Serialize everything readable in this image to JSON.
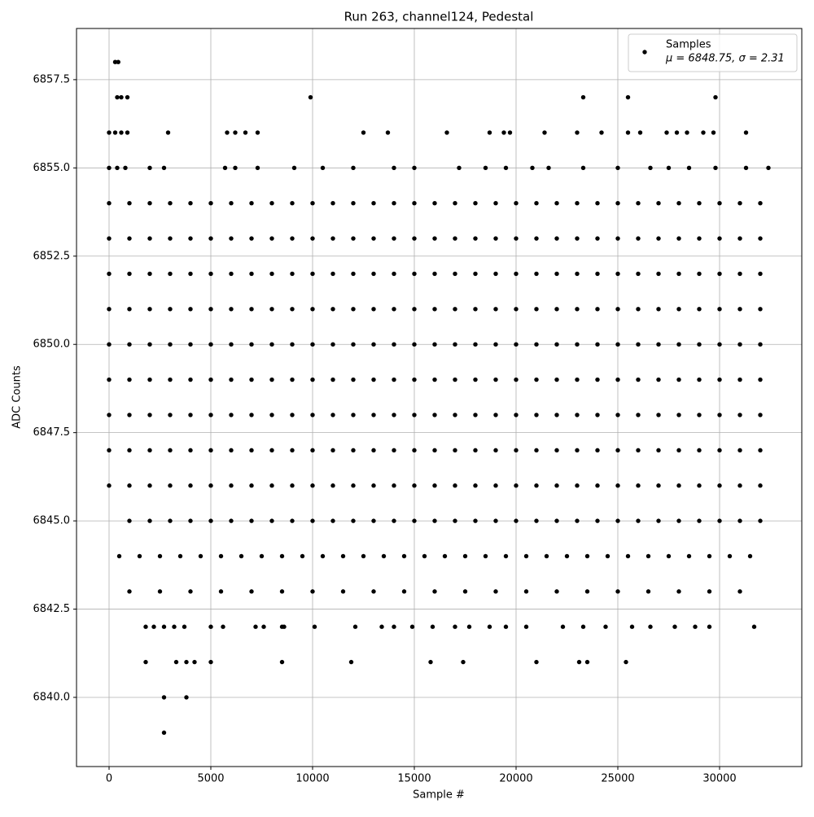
{
  "chart_data": {
    "type": "scatter",
    "title": "Run 263, channel124, Pedestal",
    "x_label": "Sample #",
    "y_label": "ADC Counts",
    "xlim": [
      -1600,
      34040
    ],
    "ylim": [
      6838.04,
      6858.95
    ],
    "xticks": [
      0,
      5000,
      10000,
      15000,
      20000,
      25000,
      30000
    ],
    "yticks": [
      {
        "value": 6840,
        "label": "6840.0"
      },
      6842.5,
      {
        "value": 6845,
        "label": "6845.0"
      },
      6847.5,
      {
        "value": 6850,
        "label": "6850.0"
      },
      6852.5,
      {
        "value": 6855,
        "label": "6855.0"
      },
      6857.5
    ],
    "grid": true,
    "legend": "upper right",
    "stats_label": "μ = 6848.75, σ = 2.31",
    "series": [
      {
        "name": "Samples",
        "color": "#000000",
        "x": [
          0,
          1000,
          2000,
          3000,
          4000,
          5000,
          6000,
          7000,
          8000,
          9000,
          10000,
          11000,
          12000,
          13000,
          14000,
          15000,
          16000,
          17000,
          18000,
          19000,
          20000,
          21000,
          22000,
          23000,
          24000,
          25000,
          26000,
          27000,
          28000,
          29000,
          30000,
          31000,
          32000,
          0,
          1000,
          2000,
          3000,
          4000,
          5000,
          6000,
          7000,
          8000,
          9000,
          10000,
          11000,
          12000,
          13000,
          14000,
          15000,
          16000,
          17000,
          18000,
          19000,
          20000,
          21000,
          22000,
          23000,
          24000,
          25000,
          26000,
          27000,
          28000,
          29000,
          30000,
          31000,
          32000,
          0,
          1000,
          2000,
          3000,
          4000,
          5000,
          6000,
          7000,
          8000,
          9000,
          10000,
          11000,
          12000,
          13000,
          14000,
          15000,
          16000,
          17000,
          18000,
          19000,
          20000,
          21000,
          22000,
          23000,
          24000,
          25000,
          26000,
          27000,
          28000,
          29000,
          30000,
          31000,
          32000,
          0,
          1000,
          2000,
          3000,
          4000,
          5000,
          6000,
          7000,
          8000,
          9000,
          10000,
          11000,
          12000,
          13000,
          14000,
          15000,
          16000,
          17000,
          18000,
          19000,
          20000,
          21000,
          22000,
          23000,
          24000,
          25000,
          26000,
          27000,
          28000,
          29000,
          30000,
          31000,
          32000,
          0,
          1000,
          2000,
          3000,
          4000,
          5000,
          6000,
          7000,
          8000,
          9000,
          10000,
          11000,
          12000,
          13000,
          14000,
          15000,
          16000,
          17000,
          18000,
          19000,
          20000,
          21000,
          22000,
          23000,
          24000,
          25000,
          26000,
          27000,
          28000,
          29000,
          30000,
          31000,
          32000,
          0,
          1000,
          2000,
          3000,
          4000,
          5000,
          6000,
          7000,
          8000,
          9000,
          10000,
          11000,
          12000,
          13000,
          14000,
          15000,
          16000,
          17000,
          18000,
          19000,
          20000,
          21000,
          22000,
          23000,
          24000,
          25000,
          26000,
          27000,
          28000,
          29000,
          30000,
          31000,
          32000,
          0,
          1000,
          2000,
          3000,
          4000,
          5000,
          6000,
          7000,
          8000,
          9000,
          10000,
          11000,
          12000,
          13000,
          14000,
          15000,
          16000,
          17000,
          18000,
          19000,
          20000,
          21000,
          22000,
          23000,
          24000,
          25000,
          26000,
          27000,
          28000,
          29000,
          30000,
          31000,
          32000,
          0,
          1000,
          2000,
          3000,
          4000,
          5000,
          6000,
          7000,
          8000,
          9000,
          10000,
          11000,
          12000,
          13000,
          14000,
          15000,
          16000,
          17000,
          18000,
          19000,
          20000,
          21000,
          22000,
          23000,
          24000,
          25000,
          26000,
          27000,
          28000,
          29000,
          30000,
          31000,
          32000,
          0,
          1000,
          2000,
          3000,
          4000,
          5000,
          6000,
          7000,
          8000,
          9000,
          10000,
          11000,
          12000,
          13000,
          14000,
          15000,
          16000,
          17000,
          18000,
          19000,
          20000,
          21000,
          22000,
          23000,
          24000,
          25000,
          26000,
          27000,
          28000,
          29000,
          30000,
          31000,
          32000,
          1000,
          2000,
          3000,
          4000,
          5000,
          6000,
          7000,
          8000,
          9000,
          10000,
          11000,
          12000,
          13000,
          14000,
          15000,
          16000,
          17000,
          18000,
          19000,
          20000,
          21000,
          22000,
          23000,
          24000,
          25000,
          26000,
          27000,
          28000,
          29000,
          30000,
          31000,
          32000,
          500,
          1500,
          2500,
          3500,
          4500,
          5500,
          6500,
          7500,
          8500,
          9500,
          10500,
          11500,
          12500,
          13500,
          14500,
          15500,
          16500,
          17500,
          18500,
          19500,
          20500,
          21500,
          22500,
          23500,
          24500,
          25500,
          26500,
          27500,
          28500,
          29500,
          30500,
          31500,
          1000,
          2500,
          4000,
          5500,
          7000,
          8500,
          10000,
          11500,
          13000,
          14500,
          16000,
          17500,
          19000,
          20500,
          22000,
          23500,
          25000,
          26500,
          28000,
          29500,
          31000,
          0,
          400,
          800,
          2000,
          2700,
          5700,
          6200,
          7300,
          9100,
          10500,
          12000,
          14000,
          15000,
          17200,
          18500,
          19500,
          20800,
          21600,
          23300,
          25000,
          26600,
          27500,
          28500,
          29800,
          31300,
          32400,
          0,
          300,
          600,
          900,
          2900,
          5800,
          6200,
          6700,
          7300,
          12500,
          13700,
          16600,
          18700,
          19400,
          19700,
          21400,
          23000,
          24200,
          25500,
          26100,
          27400,
          27900,
          28400,
          29200,
          29700,
          31300,
          400,
          600,
          900,
          9900,
          23300,
          25500,
          29800,
          300,
          450,
          1800,
          2200,
          2700,
          3200,
          3700,
          5000,
          5600,
          7200,
          7600,
          8500,
          8600,
          10100,
          12100,
          13400,
          14000,
          14900,
          15900,
          17000,
          17700,
          18700,
          19500,
          20500,
          22300,
          23300,
          24400,
          25700,
          26600,
          27800,
          28800,
          29500,
          31700,
          1800,
          3300,
          3800,
          4200,
          5000,
          8500,
          11900,
          15800,
          17400,
          21000,
          23100,
          23500,
          25400,
          2700,
          3800,
          2700
        ],
        "values": [
          6854,
          6854,
          6854,
          6854,
          6854,
          6854,
          6854,
          6854,
          6854,
          6854,
          6854,
          6854,
          6854,
          6854,
          6854,
          6854,
          6854,
          6854,
          6854,
          6854,
          6854,
          6854,
          6854,
          6854,
          6854,
          6854,
          6854,
          6854,
          6854,
          6854,
          6854,
          6854,
          6854,
          6853,
          6853,
          6853,
          6853,
          6853,
          6853,
          6853,
          6853,
          6853,
          6853,
          6853,
          6853,
          6853,
          6853,
          6853,
          6853,
          6853,
          6853,
          6853,
          6853,
          6853,
          6853,
          6853,
          6853,
          6853,
          6853,
          6853,
          6853,
          6853,
          6853,
          6853,
          6853,
          6853,
          6852,
          6852,
          6852,
          6852,
          6852,
          6852,
          6852,
          6852,
          6852,
          6852,
          6852,
          6852,
          6852,
          6852,
          6852,
          6852,
          6852,
          6852,
          6852,
          6852,
          6852,
          6852,
          6852,
          6852,
          6852,
          6852,
          6852,
          6852,
          6852,
          6852,
          6852,
          6852,
          6852,
          6851,
          6851,
          6851,
          6851,
          6851,
          6851,
          6851,
          6851,
          6851,
          6851,
          6851,
          6851,
          6851,
          6851,
          6851,
          6851,
          6851,
          6851,
          6851,
          6851,
          6851,
          6851,
          6851,
          6851,
          6851,
          6851,
          6851,
          6851,
          6851,
          6851,
          6851,
          6851,
          6851,
          6850,
          6850,
          6850,
          6850,
          6850,
          6850,
          6850,
          6850,
          6850,
          6850,
          6850,
          6850,
          6850,
          6850,
          6850,
          6850,
          6850,
          6850,
          6850,
          6850,
          6850,
          6850,
          6850,
          6850,
          6850,
          6850,
          6850,
          6850,
          6850,
          6850,
          6850,
          6850,
          6850,
          6849,
          6849,
          6849,
          6849,
          6849,
          6849,
          6849,
          6849,
          6849,
          6849,
          6849,
          6849,
          6849,
          6849,
          6849,
          6849,
          6849,
          6849,
          6849,
          6849,
          6849,
          6849,
          6849,
          6849,
          6849,
          6849,
          6849,
          6849,
          6849,
          6849,
          6849,
          6849,
          6849,
          6848,
          6848,
          6848,
          6848,
          6848,
          6848,
          6848,
          6848,
          6848,
          6848,
          6848,
          6848,
          6848,
          6848,
          6848,
          6848,
          6848,
          6848,
          6848,
          6848,
          6848,
          6848,
          6848,
          6848,
          6848,
          6848,
          6848,
          6848,
          6848,
          6848,
          6848,
          6848,
          6848,
          6847,
          6847,
          6847,
          6847,
          6847,
          6847,
          6847,
          6847,
          6847,
          6847,
          6847,
          6847,
          6847,
          6847,
          6847,
          6847,
          6847,
          6847,
          6847,
          6847,
          6847,
          6847,
          6847,
          6847,
          6847,
          6847,
          6847,
          6847,
          6847,
          6847,
          6847,
          6847,
          6847,
          6846,
          6846,
          6846,
          6846,
          6846,
          6846,
          6846,
          6846,
          6846,
          6846,
          6846,
          6846,
          6846,
          6846,
          6846,
          6846,
          6846,
          6846,
          6846,
          6846,
          6846,
          6846,
          6846,
          6846,
          6846,
          6846,
          6846,
          6846,
          6846,
          6846,
          6846,
          6846,
          6846,
          6845,
          6845,
          6845,
          6845,
          6845,
          6845,
          6845,
          6845,
          6845,
          6845,
          6845,
          6845,
          6845,
          6845,
          6845,
          6845,
          6845,
          6845,
          6845,
          6845,
          6845,
          6845,
          6845,
          6845,
          6845,
          6845,
          6845,
          6845,
          6845,
          6845,
          6845,
          6845,
          6844,
          6844,
          6844,
          6844,
          6844,
          6844,
          6844,
          6844,
          6844,
          6844,
          6844,
          6844,
          6844,
          6844,
          6844,
          6844,
          6844,
          6844,
          6844,
          6844,
          6844,
          6844,
          6844,
          6844,
          6844,
          6844,
          6844,
          6844,
          6844,
          6844,
          6844,
          6844,
          6843,
          6843,
          6843,
          6843,
          6843,
          6843,
          6843,
          6843,
          6843,
          6843,
          6843,
          6843,
          6843,
          6843,
          6843,
          6843,
          6843,
          6843,
          6843,
          6843,
          6843,
          6855,
          6855,
          6855,
          6855,
          6855,
          6855,
          6855,
          6855,
          6855,
          6855,
          6855,
          6855,
          6855,
          6855,
          6855,
          6855,
          6855,
          6855,
          6855,
          6855,
          6855,
          6855,
          6855,
          6855,
          6855,
          6855,
          6856,
          6856,
          6856,
          6856,
          6856,
          6856,
          6856,
          6856,
          6856,
          6856,
          6856,
          6856,
          6856,
          6856,
          6856,
          6856,
          6856,
          6856,
          6856,
          6856,
          6856,
          6856,
          6856,
          6856,
          6856,
          6856,
          6857,
          6857,
          6857,
          6857,
          6857,
          6857,
          6857,
          6858,
          6858,
          6842,
          6842,
          6842,
          6842,
          6842,
          6842,
          6842,
          6842,
          6842,
          6842,
          6842,
          6842,
          6842,
          6842,
          6842,
          6842,
          6842,
          6842,
          6842,
          6842,
          6842,
          6842,
          6842,
          6842,
          6842,
          6842,
          6842,
          6842,
          6842,
          6842,
          6842,
          6841,
          6841,
          6841,
          6841,
          6841,
          6841,
          6841,
          6841,
          6841,
          6841,
          6841,
          6841,
          6841,
          6840,
          6840,
          6839
        ]
      }
    ]
  }
}
